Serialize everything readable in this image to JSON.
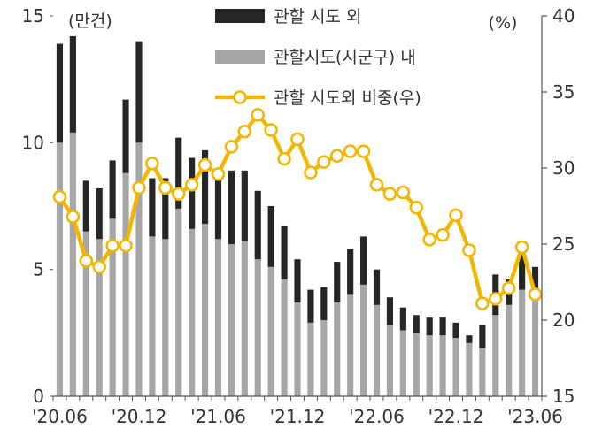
{
  "chart_data": {
    "type": "bar",
    "left_unit": "(만건)",
    "right_unit": "(%)",
    "y_left": {
      "min": 0,
      "max": 15,
      "ticks": [
        "0",
        "5",
        "10",
        "15"
      ]
    },
    "y_right": {
      "min": 15,
      "max": 40,
      "ticks": [
        "15",
        "20",
        "25",
        "30",
        "35",
        "40"
      ]
    },
    "x_tick_labels": [
      {
        "index": 0,
        "label": "'20.06"
      },
      {
        "index": 6,
        "label": "'20.12"
      },
      {
        "index": 12,
        "label": "'21.06"
      },
      {
        "index": 18,
        "label": "'21.12"
      },
      {
        "index": 24,
        "label": "'22.06"
      },
      {
        "index": 30,
        "label": "'22.12"
      },
      {
        "index": 36,
        "label": "'23.06"
      }
    ],
    "categories": [
      "2020-06",
      "2020-07",
      "2020-08",
      "2020-09",
      "2020-10",
      "2020-11",
      "2020-12",
      "2021-01",
      "2021-02",
      "2021-03",
      "2021-04",
      "2021-05",
      "2021-06",
      "2021-07",
      "2021-08",
      "2021-09",
      "2021-10",
      "2021-11",
      "2021-12",
      "2022-01",
      "2022-02",
      "2022-03",
      "2022-04",
      "2022-05",
      "2022-06",
      "2022-07",
      "2022-08",
      "2022-09",
      "2022-10",
      "2022-11",
      "2022-12",
      "2023-01",
      "2023-02",
      "2023-03",
      "2023-04",
      "2023-05",
      "2023-06"
    ],
    "series": [
      {
        "name": "관할 시도 외",
        "color": "#262626",
        "stack": "base-on-inside",
        "values": [
          3.9,
          3.8,
          2.0,
          2.0,
          2.3,
          2.9,
          4.0,
          2.3,
          2.4,
          2.8,
          2.8,
          2.9,
          2.7,
          2.9,
          2.8,
          2.7,
          2.4,
          2.1,
          1.7,
          1.3,
          1.3,
          1.6,
          1.8,
          1.9,
          1.4,
          1.1,
          0.9,
          0.7,
          0.7,
          0.7,
          0.6,
          0.3,
          0.9,
          1.6,
          1.0,
          1.4,
          1.3
        ]
      },
      {
        "name": "관할시도(시군구) 내",
        "color": "#a6a6a6",
        "values": [
          10.0,
          10.4,
          6.5,
          6.2,
          7.0,
          8.8,
          10.0,
          6.3,
          6.2,
          7.4,
          6.6,
          6.8,
          6.2,
          6.0,
          6.1,
          5.4,
          5.1,
          4.6,
          3.7,
          2.9,
          3.0,
          3.7,
          4.0,
          4.4,
          3.6,
          2.8,
          2.6,
          2.5,
          2.4,
          2.4,
          2.3,
          2.1,
          1.9,
          3.2,
          3.6,
          4.2,
          3.8
        ]
      },
      {
        "name": "관할 시도외 비중(우)",
        "color": "#f2b600",
        "type": "line",
        "axis": "right",
        "values": [
          28.1,
          26.8,
          23.9,
          23.5,
          24.9,
          24.9,
          28.7,
          30.3,
          28.7,
          28.3,
          28.9,
          30.2,
          29.6,
          31.4,
          32.4,
          33.5,
          32.5,
          30.6,
          31.9,
          29.7,
          30.4,
          30.8,
          31.1,
          31.1,
          28.9,
          28.3,
          28.4,
          27.4,
          25.3,
          25.6,
          26.9,
          24.6,
          21.1,
          21.4,
          22.1,
          24.8,
          21.7
        ]
      }
    ]
  }
}
